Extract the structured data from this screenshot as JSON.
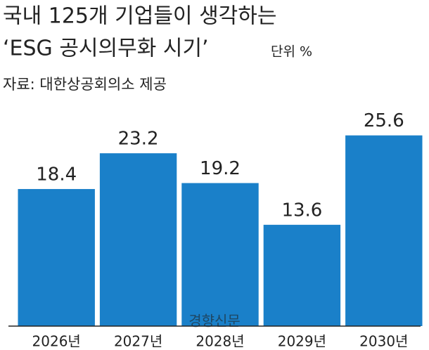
{
  "chart_data": {
    "type": "bar",
    "title": [
      "국내 125개 기업들이 생각하는",
      "‘ESG 공시의무화 시기’"
    ],
    "unit": "단위 %",
    "source": "자료: 대한상공회의소 제공",
    "watermark": "경향신문",
    "categories": [
      "2026년",
      "2027년",
      "2028년",
      "2029년",
      "2030년"
    ],
    "values": [
      18.4,
      23.2,
      19.2,
      13.6,
      25.6
    ],
    "color": "#1a80c9",
    "ylim": [
      0,
      30
    ]
  }
}
